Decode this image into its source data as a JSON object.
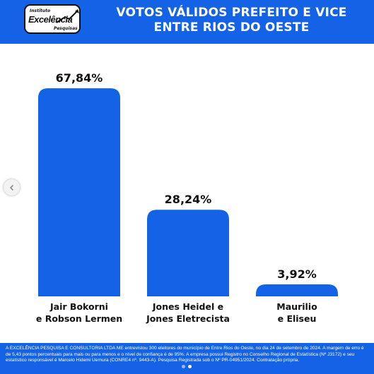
{
  "header": {
    "title_line1": "VOTOS VÁLIDOS PREFEITO E VICE",
    "title_line2": "ENTRE RIOS DO OESTE",
    "logo": {
      "line1": "Instituto",
      "line2": "Excelência",
      "line3": "Pesquisas"
    }
  },
  "colors": {
    "brand_blue": "#1463e6",
    "bar_blue": "#1463e6",
    "text_dark": "#111111"
  },
  "chart_data": {
    "type": "bar",
    "title": "VOTOS VÁLIDOS PREFEITO E VICE ENTRE RIOS DO OESTE",
    "categories": [
      [
        "Jair Bokorni",
        "e Robson Lermen"
      ],
      [
        "Jones Heidel e",
        "Jones Eletrecista"
      ],
      [
        "Maurilio",
        "e Eliseu"
      ]
    ],
    "values": [
      67.84,
      28.24,
      3.92
    ],
    "value_labels": [
      "67,84%",
      "28,24%",
      "3,92%"
    ],
    "ylim": [
      0,
      100
    ],
    "grid": false,
    "legend": "none"
  },
  "footer": {
    "text": "A EXCELÊNCIA PESQUISA E CONSULTORIA LTDA ME entrevistou 300 eleitores do município de Entre Rios do Oeste, no dia 24 de setembro de 2024. A margem de erro é de 5,43 pontos percentuais para mais ou para menos e o nível de confiança é de 95%. A empresa possui Registro no Conselho Regional de Estatística (Nº J3172) e seu estatístico responsável é Marcelo Hidemi Uemura (CONRE4 nº. 9443-A). Pesquisa Registrada sob o Nº PR-04951/2024. Contratação própria."
  }
}
